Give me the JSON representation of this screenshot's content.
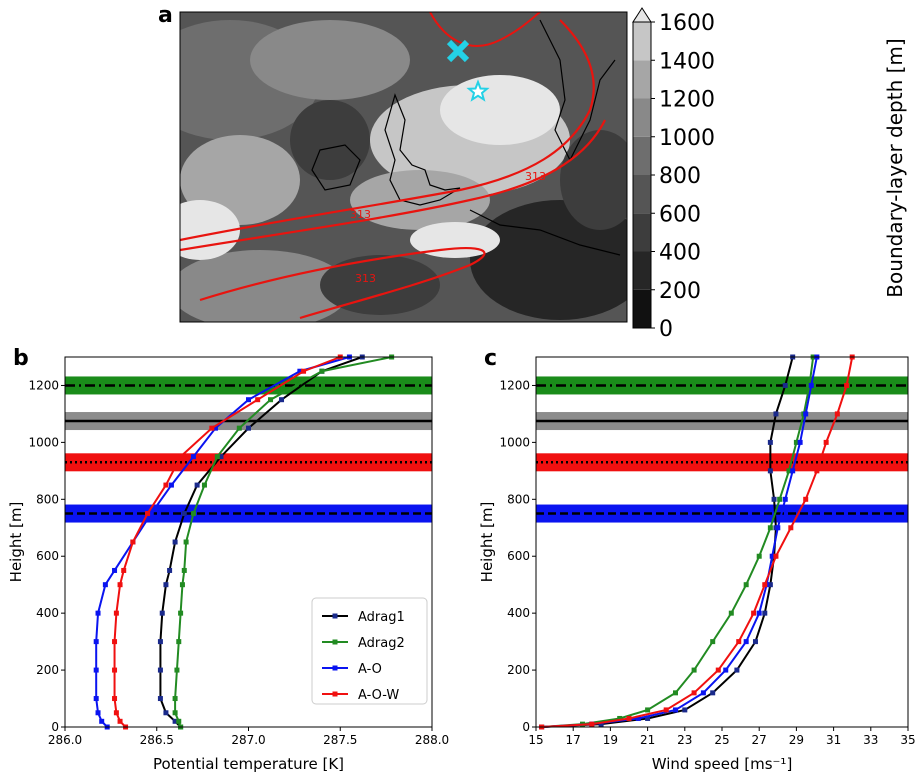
{
  "panel_a": {
    "letter": "a",
    "colorbar_label": "Boundary-layer depth [m]",
    "colorbar_ticks": [
      "0",
      "200",
      "400",
      "600",
      "800",
      "1000",
      "1200",
      "1400",
      "1600"
    ],
    "colorbar_levels": [
      0,
      200,
      400,
      600,
      800,
      1000,
      1200,
      1400,
      1600
    ],
    "colorbar_colors": [
      "#111111",
      "#262626",
      "#3d3d3d",
      "#555555",
      "#6e6e6e",
      "#898989",
      "#a6a6a6",
      "#c6c6c6",
      "#e6e6e6"
    ],
    "contour_label": "313",
    "contour_color": "#e8140f",
    "cross_marker_color": "#24d1e6",
    "star_marker_color": "#24d1e6"
  },
  "legend": {
    "entries": [
      {
        "name": "Adrag1",
        "color": "#000000"
      },
      {
        "name": "Adrag2",
        "color": "#228b22"
      },
      {
        "name": "A-O",
        "color": "#0a14f0"
      },
      {
        "name": "A-O-W",
        "color": "#f01010"
      }
    ]
  },
  "hlines": [
    {
      "y": 1200,
      "band_color": "#1a8c1a",
      "line_style": "dashdot",
      "line_color": "#000000"
    },
    {
      "y": 1075,
      "band_color": "#8c8c8c",
      "line_style": "solid",
      "line_color": "#000000"
    },
    {
      "y": 930,
      "band_color": "#f01010",
      "line_style": "dotted",
      "line_color": "#000000"
    },
    {
      "y": 750,
      "band_color": "#0a14f0",
      "line_style": "dashed",
      "line_color": "#000000"
    }
  ],
  "chart_data": [
    {
      "type": "line",
      "panel_letter": "b",
      "xlabel": "Potential temperature [K]",
      "ylabel": "Height [m]",
      "xlim": [
        286.0,
        288.0
      ],
      "ylim": [
        0,
        1300
      ],
      "xticks": [
        "286.0",
        "286.5",
        "287.0",
        "287.5",
        "288.0"
      ],
      "yticks": [
        "0",
        "200",
        "400",
        "600",
        "800",
        "1000",
        "1200"
      ],
      "legend_position": "lower-right",
      "grid": false,
      "series": [
        {
          "name": "Adrag1",
          "color": "#000000",
          "x": [
            286.63,
            286.6,
            286.55,
            286.52,
            286.52,
            286.52,
            286.53,
            286.55,
            286.57,
            286.6,
            286.65,
            286.72,
            286.85,
            287.0,
            287.18,
            287.4,
            287.62
          ],
          "y": [
            0,
            20,
            50,
            100,
            200,
            300,
            400,
            500,
            550,
            650,
            750,
            850,
            950,
            1050,
            1150,
            1250,
            1300
          ]
        },
        {
          "name": "Adrag2",
          "color": "#228b22",
          "x": [
            286.63,
            286.62,
            286.6,
            286.6,
            286.61,
            286.62,
            286.63,
            286.64,
            286.65,
            286.66,
            286.7,
            286.76,
            286.83,
            286.95,
            287.12,
            287.4,
            287.78
          ],
          "y": [
            0,
            20,
            50,
            100,
            200,
            300,
            400,
            500,
            550,
            650,
            750,
            850,
            950,
            1050,
            1150,
            1250,
            1300
          ]
        },
        {
          "name": "A-O",
          "color": "#0a14f0",
          "x": [
            286.23,
            286.2,
            286.18,
            286.17,
            286.17,
            286.17,
            286.18,
            286.22,
            286.27,
            286.37,
            286.47,
            286.58,
            286.7,
            286.82,
            287.0,
            287.28,
            287.55
          ],
          "y": [
            0,
            20,
            50,
            100,
            200,
            300,
            400,
            500,
            550,
            650,
            750,
            850,
            950,
            1050,
            1150,
            1250,
            1300
          ]
        },
        {
          "name": "A-O-W",
          "color": "#f01010",
          "x": [
            286.33,
            286.3,
            286.28,
            286.27,
            286.27,
            286.27,
            286.28,
            286.3,
            286.32,
            286.37,
            286.45,
            286.55,
            286.63,
            286.8,
            287.05,
            287.3,
            287.5
          ],
          "y": [
            0,
            20,
            50,
            100,
            200,
            300,
            400,
            500,
            550,
            650,
            750,
            850,
            950,
            1050,
            1150,
            1250,
            1300
          ]
        }
      ]
    },
    {
      "type": "line",
      "panel_letter": "c",
      "xlabel": "Wind speed [ms⁻¹]",
      "ylabel": "Height [m]",
      "xlim": [
        15,
        35
      ],
      "ylim": [
        0,
        1300
      ],
      "xticks": [
        "15",
        "17",
        "19",
        "21",
        "23",
        "25",
        "27",
        "29",
        "31",
        "33",
        "35"
      ],
      "yticks": [
        "0",
        "200",
        "400",
        "600",
        "800",
        "1000",
        "1200"
      ],
      "grid": false,
      "series": [
        {
          "name": "Adrag1",
          "color": "#000000",
          "x": [
            15.3,
            18.5,
            21.0,
            23.0,
            24.5,
            25.8,
            26.8,
            27.3,
            27.6,
            27.8,
            27.9,
            27.8,
            27.6,
            27.6,
            27.9,
            28.4,
            28.8
          ],
          "y": [
            0,
            10,
            30,
            60,
            120,
            200,
            300,
            400,
            500,
            600,
            700,
            800,
            900,
            1000,
            1100,
            1200,
            1300
          ]
        },
        {
          "name": "Adrag2",
          "color": "#228b22",
          "x": [
            15.3,
            17.5,
            19.5,
            21.0,
            22.5,
            23.5,
            24.5,
            25.5,
            26.3,
            27.0,
            27.6,
            28.1,
            28.6,
            29.0,
            29.4,
            29.7,
            29.9
          ],
          "y": [
            0,
            10,
            30,
            60,
            120,
            200,
            300,
            400,
            500,
            600,
            700,
            800,
            900,
            1000,
            1100,
            1200,
            1300
          ]
        },
        {
          "name": "A-O",
          "color": "#0a14f0",
          "x": [
            15.3,
            18.0,
            20.5,
            22.5,
            24.0,
            25.2,
            26.3,
            27.0,
            27.4,
            27.7,
            28.0,
            28.4,
            28.8,
            29.2,
            29.5,
            29.8,
            30.1
          ],
          "y": [
            0,
            10,
            30,
            60,
            120,
            200,
            300,
            400,
            500,
            600,
            700,
            800,
            900,
            1000,
            1100,
            1200,
            1300
          ]
        },
        {
          "name": "A-O-W",
          "color": "#f01010",
          "x": [
            15.3,
            18.0,
            20.0,
            22.0,
            23.5,
            24.8,
            25.9,
            26.7,
            27.3,
            27.9,
            28.7,
            29.5,
            30.1,
            30.6,
            31.2,
            31.7,
            32.0
          ],
          "y": [
            0,
            10,
            30,
            60,
            120,
            200,
            300,
            400,
            500,
            600,
            700,
            800,
            900,
            1000,
            1100,
            1200,
            1300
          ]
        }
      ]
    }
  ]
}
